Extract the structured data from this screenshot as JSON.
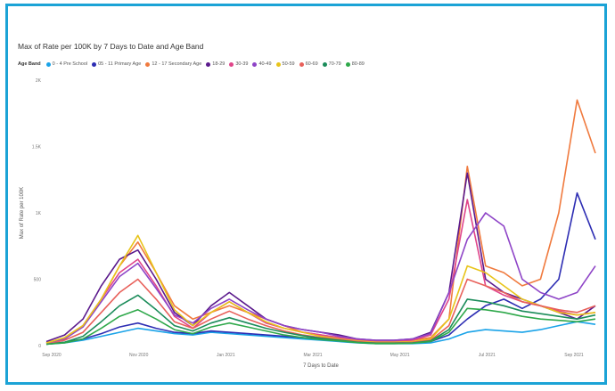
{
  "chart_data": {
    "type": "line",
    "title": "Max of Rate per 100K by 7 Days to Date and Age Band",
    "legend_title": "Age Band",
    "xlabel": "7 Days to Date",
    "ylabel": "Max of Rate per 100K",
    "x_ticks": [
      "Sep 2020",
      "Nov 2020",
      "Jan 2021",
      "Mar 2021",
      "May 2021",
      "Jul 2021",
      "Sep 2021"
    ],
    "y_ticks": [
      0,
      500,
      1000,
      1500,
      2000
    ],
    "ylim": [
      0,
      2000
    ],
    "x": [
      "2020-08-29",
      "2020-09-12",
      "2020-09-26",
      "2020-10-10",
      "2020-10-24",
      "2020-11-07",
      "2020-11-21",
      "2020-12-05",
      "2020-12-19",
      "2021-01-02",
      "2021-01-16",
      "2021-01-30",
      "2021-02-13",
      "2021-02-27",
      "2021-03-13",
      "2021-03-27",
      "2021-04-10",
      "2021-04-24",
      "2021-05-08",
      "2021-05-22",
      "2021-06-05",
      "2021-06-19",
      "2021-07-03",
      "2021-07-17",
      "2021-07-31",
      "2021-08-14",
      "2021-08-28",
      "2021-09-11",
      "2021-09-25",
      "2021-10-09",
      "2021-10-23"
    ],
    "series": [
      {
        "name": "0 - 4 Pre School",
        "color": "#1aa3e8",
        "values": [
          10,
          20,
          40,
          70,
          100,
          130,
          110,
          90,
          80,
          100,
          90,
          80,
          70,
          60,
          50,
          40,
          30,
          20,
          15,
          15,
          15,
          20,
          50,
          100,
          120,
          110,
          100,
          120,
          150,
          180,
          160
        ]
      },
      {
        "name": "05 - 11 Primary Age",
        "color": "#2d2db3",
        "values": [
          10,
          25,
          50,
          90,
          140,
          170,
          130,
          100,
          90,
          110,
          100,
          90,
          80,
          70,
          60,
          50,
          40,
          25,
          20,
          20,
          20,
          30,
          80,
          200,
          300,
          350,
          280,
          350,
          500,
          1150,
          800
        ]
      },
      {
        "name": "12 - 17 Secondary Age",
        "color": "#f07a3e",
        "values": [
          20,
          60,
          150,
          350,
          600,
          780,
          550,
          300,
          200,
          250,
          300,
          250,
          200,
          150,
          100,
          80,
          60,
          40,
          30,
          30,
          40,
          60,
          200,
          1350,
          600,
          550,
          450,
          500,
          1000,
          1850,
          1450
        ]
      },
      {
        "name": "18-29",
        "color": "#5b1a8c",
        "values": [
          30,
          80,
          200,
          450,
          650,
          720,
          500,
          250,
          150,
          300,
          400,
          300,
          200,
          150,
          120,
          100,
          80,
          50,
          40,
          40,
          50,
          100,
          400,
          1300,
          500,
          400,
          350,
          300,
          250,
          200,
          300
        ]
      },
      {
        "name": "30-39",
        "color": "#e0458a",
        "values": [
          20,
          50,
          150,
          350,
          550,
          650,
          450,
          220,
          130,
          250,
          330,
          250,
          170,
          130,
          100,
          80,
          60,
          40,
          30,
          30,
          40,
          80,
          350,
          1100,
          450,
          380,
          330,
          300,
          260,
          230,
          250
        ]
      },
      {
        "name": "40-49",
        "color": "#8e44c7",
        "values": [
          20,
          50,
          140,
          330,
          520,
          620,
          430,
          230,
          170,
          280,
          350,
          270,
          200,
          150,
          120,
          100,
          70,
          50,
          40,
          40,
          50,
          90,
          400,
          800,
          1000,
          900,
          500,
          400,
          350,
          400,
          600
        ]
      },
      {
        "name": "50-59",
        "color": "#e8c41a",
        "values": [
          20,
          60,
          150,
          350,
          600,
          830,
          550,
          270,
          150,
          250,
          330,
          250,
          180,
          130,
          100,
          70,
          50,
          35,
          25,
          25,
          30,
          50,
          200,
          600,
          550,
          450,
          350,
          300,
          250,
          230,
          250
        ]
      },
      {
        "name": "60-69",
        "color": "#e8605a",
        "values": [
          10,
          40,
          100,
          250,
          400,
          500,
          350,
          180,
          130,
          200,
          260,
          200,
          150,
          110,
          80,
          60,
          45,
          30,
          20,
          20,
          25,
          40,
          150,
          500,
          450,
          400,
          330,
          300,
          270,
          250,
          300
        ]
      },
      {
        "name": "70-79",
        "color": "#1b8c5a",
        "values": [
          10,
          25,
          70,
          180,
          300,
          380,
          270,
          150,
          110,
          170,
          210,
          170,
          130,
          100,
          75,
          55,
          40,
          25,
          18,
          18,
          20,
          35,
          120,
          350,
          330,
          300,
          260,
          240,
          220,
          200,
          230
        ]
      },
      {
        "name": "80-89",
        "color": "#2ea84a",
        "values": [
          10,
          20,
          50,
          130,
          220,
          270,
          200,
          120,
          90,
          140,
          170,
          140,
          110,
          80,
          60,
          45,
          35,
          22,
          15,
          15,
          18,
          30,
          100,
          280,
          270,
          250,
          220,
          200,
          190,
          180,
          200
        ]
      }
    ]
  }
}
